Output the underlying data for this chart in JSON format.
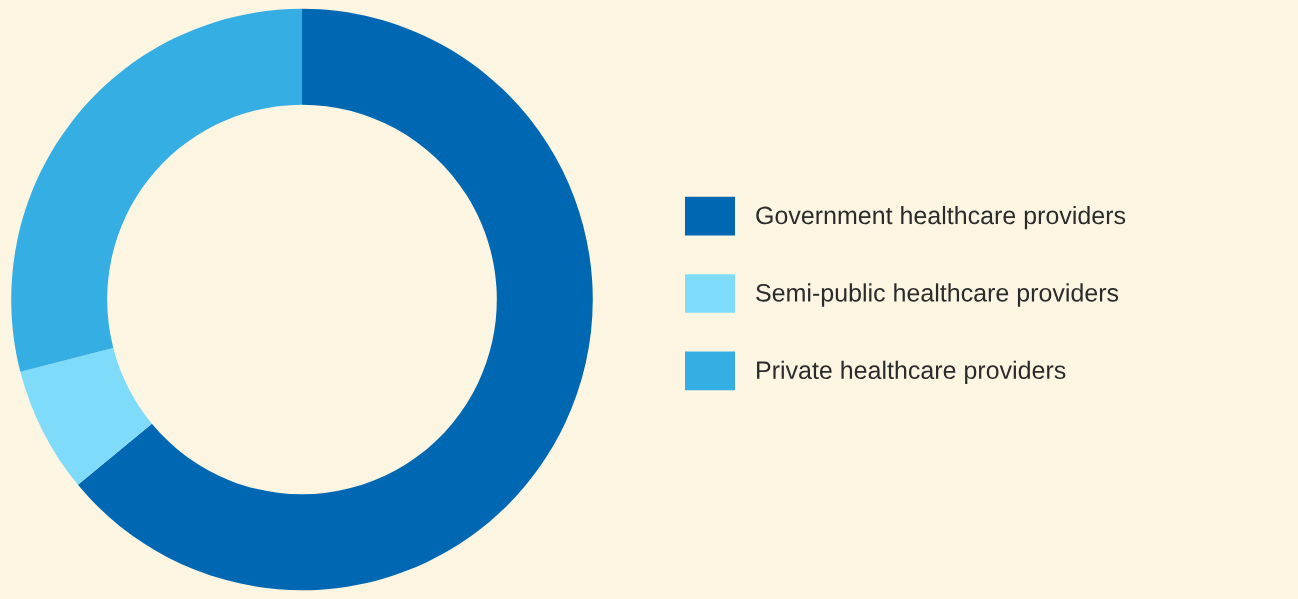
{
  "chart_data": {
    "type": "donut",
    "categories": [
      "Government healthcare providers",
      "Semi-public healthcare providers",
      "Private healthcare providers"
    ],
    "values": [
      64,
      7,
      29
    ],
    "colors": [
      "#0068b3",
      "#7fdbfa",
      "#35aee3"
    ],
    "legend": "right"
  }
}
